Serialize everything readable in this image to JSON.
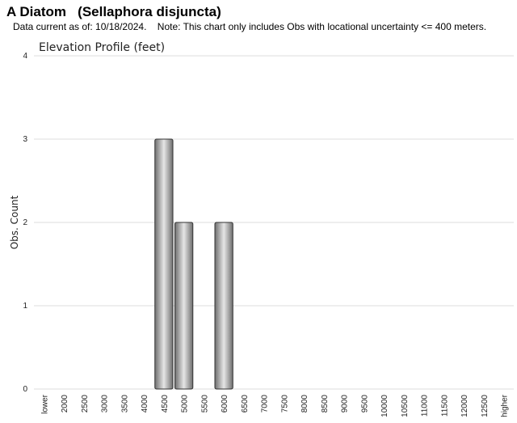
{
  "header": {
    "title": "A Diatom   (Sellaphora disjuncta)",
    "note": "Data current as of: 10/18/2024.    Note: This chart only includes Obs with locational uncertainty <= 400 meters."
  },
  "colors": {
    "bar_dark": "#6e6e6e",
    "bar_light": "#e6e6e6",
    "bar_stroke": "#333333",
    "grid": "#dddddd"
  },
  "chart_data": {
    "type": "bar",
    "title": "Elevation Profile (feet)",
    "xlabel": "",
    "ylabel": "Obs. Count",
    "ylim": [
      0,
      4
    ],
    "yticks": [
      "0",
      "1",
      "2",
      "3",
      "4"
    ],
    "grid": true,
    "categories": [
      "lower",
      "2000",
      "2500",
      "3000",
      "3500",
      "4000",
      "4500",
      "5000",
      "5500",
      "6000",
      "6500",
      "7000",
      "7500",
      "8000",
      "8500",
      "9000",
      "9500",
      "10000",
      "10500",
      "11000",
      "11500",
      "12000",
      "12500",
      "higher"
    ],
    "values": [
      0,
      0,
      0,
      0,
      0,
      0,
      3,
      2,
      0,
      2,
      0,
      0,
      0,
      0,
      0,
      0,
      0,
      0,
      0,
      0,
      0,
      0,
      0,
      0
    ]
  }
}
